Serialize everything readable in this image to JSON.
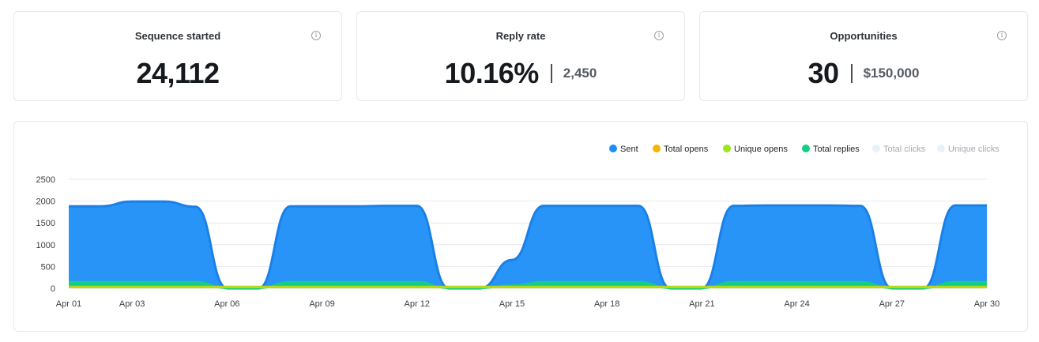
{
  "cards": [
    {
      "title": "Sequence started",
      "value": "24,112",
      "sub": ""
    },
    {
      "title": "Reply rate",
      "value": "10.16%",
      "sub": "2,450"
    },
    {
      "title": "Opportunities",
      "value": "30",
      "sub": "$150,000"
    }
  ],
  "icons": {
    "info": "info-icon"
  },
  "chart_data": {
    "type": "area",
    "y_ticks": [
      0,
      500,
      1000,
      1500,
      2000,
      2500
    ],
    "ylim": [
      0,
      2500
    ],
    "x_tick_labels": [
      "Apr 01",
      "Apr 03",
      "Apr 06",
      "Apr 09",
      "Apr 12",
      "Apr 15",
      "Apr 18",
      "Apr 21",
      "Apr 24",
      "Apr 27",
      "Apr 30"
    ],
    "x_tick_days": [
      1,
      3,
      6,
      9,
      12,
      15,
      18,
      21,
      24,
      27,
      30
    ],
    "grid": "horizontal",
    "legend_position": "top-right",
    "series": [
      {
        "name": "Sent",
        "color": "#1e8ef7",
        "active": true,
        "x": [
          1,
          2,
          3,
          4,
          5,
          6,
          7,
          8,
          9,
          10,
          11,
          12,
          13,
          14,
          15,
          16,
          17,
          18,
          19,
          20,
          21,
          22,
          23,
          24,
          25,
          26,
          27,
          28,
          29,
          30
        ],
        "values": [
          1880,
          1880,
          1990,
          1990,
          1870,
          0,
          0,
          1880,
          1880,
          1880,
          1890,
          1890,
          0,
          0,
          650,
          1890,
          1890,
          1890,
          1890,
          0,
          0,
          1890,
          1900,
          1900,
          1900,
          1890,
          0,
          0,
          1900,
          1900
        ]
      },
      {
        "name": "Total opens",
        "color": "#f7b500",
        "active": true,
        "x": [
          1,
          2,
          3,
          4,
          5,
          6,
          7,
          8,
          9,
          10,
          11,
          12,
          13,
          14,
          15,
          16,
          17,
          18,
          19,
          20,
          21,
          22,
          23,
          24,
          25,
          26,
          27,
          28,
          29,
          30
        ],
        "values": [
          40,
          40,
          40,
          40,
          40,
          40,
          40,
          40,
          40,
          40,
          40,
          40,
          40,
          40,
          40,
          40,
          40,
          40,
          40,
          40,
          40,
          40,
          40,
          40,
          40,
          40,
          40,
          40,
          40,
          40
        ]
      },
      {
        "name": "Unique opens",
        "color": "#9ce51a",
        "active": true,
        "x": [
          1,
          2,
          3,
          4,
          5,
          6,
          7,
          8,
          9,
          10,
          11,
          12,
          13,
          14,
          15,
          16,
          17,
          18,
          19,
          20,
          21,
          22,
          23,
          24,
          25,
          26,
          27,
          28,
          29,
          30
        ],
        "values": [
          30,
          30,
          30,
          30,
          30,
          30,
          30,
          30,
          30,
          30,
          30,
          30,
          30,
          30,
          30,
          30,
          30,
          30,
          30,
          30,
          30,
          30,
          30,
          30,
          30,
          30,
          30,
          30,
          30,
          30
        ]
      },
      {
        "name": "Total replies",
        "color": "#12cf86",
        "active": true,
        "x": [
          1,
          2,
          3,
          4,
          5,
          6,
          7,
          8,
          9,
          10,
          11,
          12,
          13,
          14,
          15,
          16,
          17,
          18,
          19,
          20,
          21,
          22,
          23,
          24,
          25,
          26,
          27,
          28,
          29,
          30
        ],
        "values": [
          150,
          150,
          150,
          150,
          150,
          0,
          0,
          150,
          150,
          150,
          150,
          150,
          0,
          0,
          70,
          150,
          150,
          150,
          150,
          0,
          0,
          150,
          150,
          150,
          150,
          150,
          0,
          0,
          150,
          150
        ]
      },
      {
        "name": "Total clicks",
        "color": "#e8f1fb",
        "active": false,
        "values": []
      },
      {
        "name": "Unique clicks",
        "color": "#e8f1fb",
        "active": false,
        "values": []
      }
    ]
  }
}
